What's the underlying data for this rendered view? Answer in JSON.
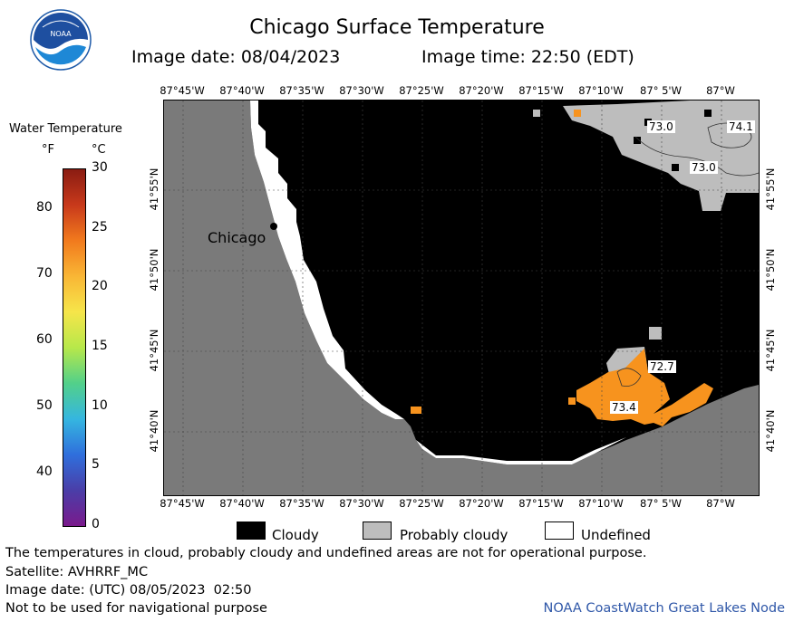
{
  "header": {
    "title": "Chicago Surface Temperature",
    "image_date_label": "Image date: 08/04/2023",
    "image_time_label": "Image time: 22:50 (EDT)",
    "logo_text": "NOAA"
  },
  "colorbar": {
    "title": "Water Temperature",
    "unit_f": "°F",
    "unit_c": "°C",
    "f_ticks": [
      "80",
      "70",
      "60",
      "50",
      "40"
    ],
    "c_ticks": [
      "30",
      "25",
      "20",
      "15",
      "10",
      "5",
      "0"
    ],
    "colors": [
      "#7a1a8c",
      "#4a3ea8",
      "#2f6fdc",
      "#35b6e0",
      "#52d08a",
      "#b7e84a",
      "#f6e54a",
      "#f9b635",
      "#f17a1d",
      "#c8391b",
      "#8a1c12"
    ]
  },
  "map": {
    "lon_labels": [
      "87°45'W",
      "87°40'W",
      "87°35'W",
      "87°30'W",
      "87°25'W",
      "87°20'W",
      "87°15'W",
      "87°10'W",
      "87° 5'W",
      "87°W"
    ],
    "lat_labels": [
      "41°55'N",
      "41°50'N",
      "41°45'N",
      "41°40'N"
    ],
    "city_label": "Chicago",
    "temp_labels": [
      "73.0",
      "74.1",
      "73.0",
      "72.7",
      "73.4"
    ],
    "colors": {
      "land": "#7a7a7a",
      "cloudy": "#000000",
      "probably_cloudy": "#bdbdbd",
      "undefined": "#ffffff",
      "warm_water": "#f7931e"
    }
  },
  "legend": {
    "cloudy": "Cloudy",
    "probably_cloudy": "Probably cloudy",
    "undefined": "Undefined"
  },
  "footer": {
    "disclaimer": "The temperatures in cloud, probably cloudy and undefined areas are not for operational purpose.",
    "satellite": "Satellite: AVHRRF_MC",
    "utc_date": "Image date: (UTC) 08/05/2023  02:50",
    "nav_warning": "Not to be used for navigational purpose",
    "credit": "NOAA CoastWatch Great Lakes Node"
  }
}
